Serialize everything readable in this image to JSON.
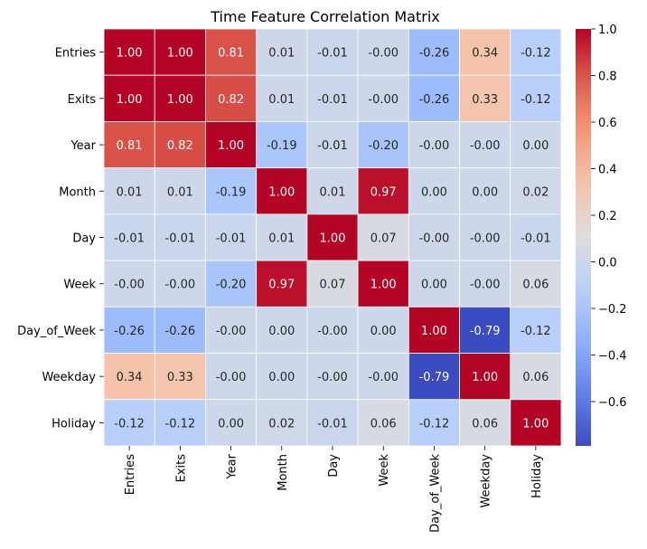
{
  "chart_data": {
    "type": "heatmap",
    "title": "Time Feature Correlation Matrix",
    "rows": [
      "Entries",
      "Exits",
      "Year",
      "Month",
      "Day",
      "Week",
      "Day_of_Week",
      "Weekday",
      "Holiday"
    ],
    "columns": [
      "Entries",
      "Exits",
      "Year",
      "Month",
      "Day",
      "Week",
      "Day_of_Week",
      "Weekday",
      "Holiday"
    ],
    "values": [
      [
        1.0,
        1.0,
        0.81,
        0.01,
        -0.01,
        -0.0,
        -0.26,
        0.34,
        -0.12
      ],
      [
        1.0,
        1.0,
        0.82,
        0.01,
        -0.01,
        -0.0,
        -0.26,
        0.33,
        -0.12
      ],
      [
        0.81,
        0.82,
        1.0,
        -0.19,
        -0.01,
        -0.2,
        -0.0,
        -0.0,
        0.0
      ],
      [
        0.01,
        0.01,
        -0.19,
        1.0,
        0.01,
        0.97,
        0.0,
        0.0,
        0.02
      ],
      [
        -0.01,
        -0.01,
        -0.01,
        0.01,
        1.0,
        0.07,
        -0.0,
        -0.0,
        -0.01
      ],
      [
        -0.0,
        -0.0,
        -0.2,
        0.97,
        0.07,
        1.0,
        0.0,
        -0.0,
        0.06
      ],
      [
        -0.26,
        -0.26,
        -0.0,
        0.0,
        -0.0,
        0.0,
        1.0,
        -0.79,
        -0.12
      ],
      [
        0.34,
        0.33,
        -0.0,
        0.0,
        -0.0,
        -0.0,
        -0.79,
        1.0,
        0.06
      ],
      [
        -0.12,
        -0.12,
        0.0,
        0.02,
        -0.01,
        0.06,
        -0.12,
        0.06,
        1.0
      ]
    ],
    "value_format": "2 decimals",
    "colormap": "coolwarm",
    "color_range": [
      -0.79,
      1.0
    ],
    "colorbar_ticks": [
      "1.0",
      "0.8",
      "0.6",
      "0.4",
      "0.2",
      "0.0",
      "−0.2",
      "−0.4",
      "−0.6"
    ],
    "colorbar_tick_values": [
      1.0,
      0.8,
      0.6,
      0.4,
      0.2,
      0.0,
      -0.2,
      -0.4,
      -0.6
    ],
    "legend": "colorbar-right"
  }
}
